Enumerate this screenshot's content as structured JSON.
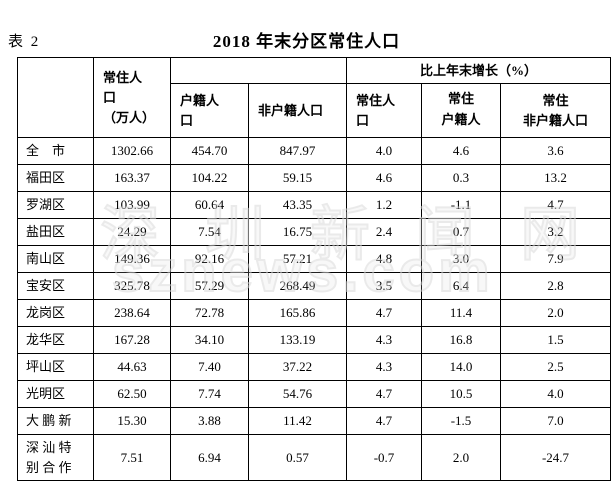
{
  "page": {
    "table_label": "表 2",
    "title": "2018 年末分区常住人口"
  },
  "watermark": {
    "line1": "深圳新闻网",
    "line2": "sznews.com"
  },
  "table": {
    "group_header": "比上年末增长（%）",
    "columns": [
      {
        "id": "district",
        "label": ""
      },
      {
        "id": "resident",
        "label": "常住人口（万人）",
        "lines": [
          "常住人",
          "口",
          "（万人）"
        ]
      },
      {
        "id": "hukou",
        "label": "户籍人口",
        "lines": [
          "户籍人",
          "口"
        ]
      },
      {
        "id": "non_hukou",
        "label": "非户籍人口",
        "lines": [
          "非户籍人口"
        ]
      },
      {
        "id": "g_resident",
        "label": "常住人口",
        "lines": [
          "常住人",
          "口"
        ]
      },
      {
        "id": "g_hukou",
        "label": "常住户籍人口",
        "lines": [
          "常住",
          "户籍人",
          "口"
        ]
      },
      {
        "id": "g_non_hukou",
        "label": "常住非户籍人口",
        "lines": [
          "常住",
          "非户籍人口"
        ]
      }
    ],
    "rows": [
      {
        "district": "全　市",
        "resident": "1302.66",
        "hukou": "454.70",
        "non_hukou": "847.97",
        "g_resident": "4.0",
        "g_hukou": "4.6",
        "g_non_hukou": "3.6"
      },
      {
        "district": "福田区",
        "resident": "163.37",
        "hukou": "104.22",
        "non_hukou": "59.15",
        "g_resident": "4.6",
        "g_hukou": "0.3",
        "g_non_hukou": "13.2"
      },
      {
        "district": "罗湖区",
        "resident": "103.99",
        "hukou": "60.64",
        "non_hukou": "43.35",
        "g_resident": "1.2",
        "g_hukou": "-1.1",
        "g_non_hukou": "4.7"
      },
      {
        "district": "盐田区",
        "resident": "24.29",
        "hukou": "7.54",
        "non_hukou": "16.75",
        "g_resident": "2.4",
        "g_hukou": "0.7",
        "g_non_hukou": "3.2"
      },
      {
        "district": "南山区",
        "resident": "149.36",
        "hukou": "92.16",
        "non_hukou": "57.21",
        "g_resident": "4.8",
        "g_hukou": "3.0",
        "g_non_hukou": "7.9"
      },
      {
        "district": "宝安区",
        "resident": "325.78",
        "hukou": "57.29",
        "non_hukou": "268.49",
        "g_resident": "3.5",
        "g_hukou": "6.4",
        "g_non_hukou": "2.8"
      },
      {
        "district": "龙岗区",
        "resident": "238.64",
        "hukou": "72.78",
        "non_hukou": "165.86",
        "g_resident": "4.7",
        "g_hukou": "11.4",
        "g_non_hukou": "2.0"
      },
      {
        "district": "龙华区",
        "resident": "167.28",
        "hukou": "34.10",
        "non_hukou": "133.19",
        "g_resident": "4.3",
        "g_hukou": "16.8",
        "g_non_hukou": "1.5"
      },
      {
        "district": "坪山区",
        "resident": "44.63",
        "hukou": "7.40",
        "non_hukou": "37.22",
        "g_resident": "4.3",
        "g_hukou": "14.0",
        "g_non_hukou": "2.5"
      },
      {
        "district": "光明区",
        "resident": "62.50",
        "hukou": "7.74",
        "non_hukou": "54.76",
        "g_resident": "4.7",
        "g_hukou": "10.5",
        "g_non_hukou": "4.0"
      },
      {
        "district": "大 鹏 新",
        "resident": "15.30",
        "hukou": "3.88",
        "non_hukou": "11.42",
        "g_resident": "4.7",
        "g_hukou": "-1.5",
        "g_non_hukou": "7.0"
      },
      {
        "district": "深 汕 特\n别 合 作",
        "resident": "7.51",
        "hukou": "6.94",
        "non_hukou": "0.57",
        "g_resident": "-0.7",
        "g_hukou": "2.0",
        "g_non_hukou": "-24.7"
      }
    ]
  }
}
